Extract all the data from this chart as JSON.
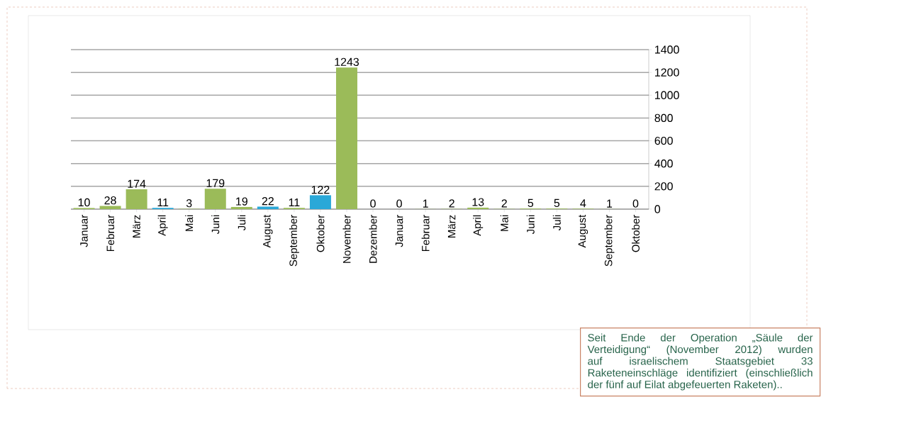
{
  "chart_data": {
    "type": "bar",
    "categories": [
      "Januar",
      "Februar",
      "März",
      "April",
      "Mai",
      "Juni",
      "Juli",
      "August",
      "September",
      "Oktober",
      "November",
      "Dezember",
      "Januar",
      "Februar",
      "März",
      "April",
      "Mai",
      "Juni",
      "Juli",
      "August",
      "September",
      "Oktober"
    ],
    "values": [
      10,
      28,
      174,
      11,
      3,
      179,
      19,
      22,
      11,
      122,
      1243,
      0,
      0,
      1,
      2,
      13,
      2,
      5,
      5,
      4,
      1,
      0
    ],
    "colors": [
      "#9bbb59",
      "#9bbb59",
      "#9bbb59",
      "#2aa8d8",
      "#9bbb59",
      "#9bbb59",
      "#9bbb59",
      "#2aa8d8",
      "#9bbb59",
      "#2aa8d8",
      "#9bbb59",
      "#9bbb59",
      "#9bbb59",
      "#9bbb59",
      "#9bbb59",
      "#9bbb59",
      "#9bbb59",
      "#9bbb59",
      "#9bbb59",
      "#9bbb59",
      "#9bbb59",
      "#9bbb59"
    ],
    "ylim": [
      0,
      1400
    ],
    "yticks": [
      0,
      200,
      400,
      600,
      800,
      1000,
      1200,
      1400
    ],
    "grid": "y",
    "data_labels": true,
    "annotations": [
      "Seit Ende der Operation „Säule der Verteidigung“ (November 2012) wurden auf israelischem Staatsgebiet 33 Raketeneinschläge identifiziert (einschließlich der fünf auf Eilat abgefeuerten Raketen).."
    ]
  }
}
